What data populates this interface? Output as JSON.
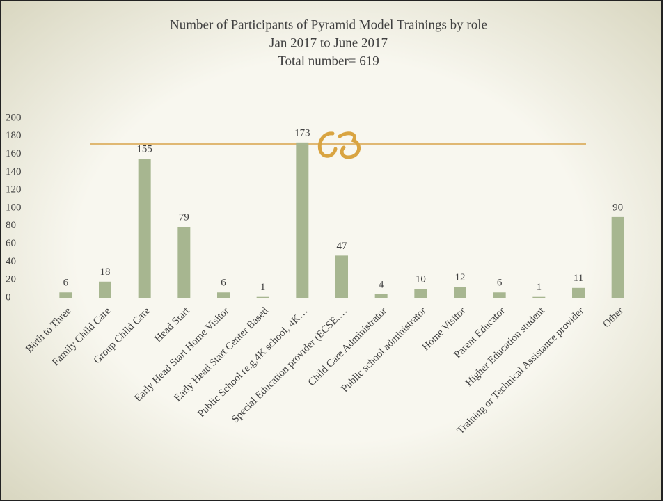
{
  "chart_data": {
    "type": "bar",
    "title": "Number of Participants of Pyramid Model Trainings by role",
    "subtitle": "Jan 2017 to June 2017",
    "annotation": "Total number= 619",
    "categories": [
      "Birth to Three",
      "Family Child Care",
      "Group Child Care",
      "Head Start",
      "Early Head Start Home Visitor",
      "Early Head Start Center Based",
      "Public School (e.g,4K school, 4K…",
      "Special Education provider (ECSE,…",
      "Child Care Administrator",
      "Public school administrator",
      "Home Visitor",
      "Parent Educator",
      "Higher Education student",
      "Training or Technical Assistance provider",
      "Other"
    ],
    "values": [
      6,
      18,
      155,
      79,
      6,
      1,
      173,
      47,
      4,
      10,
      12,
      6,
      1,
      11,
      90
    ],
    "color": "#a7b690",
    "ylim": [
      0,
      200
    ],
    "yticks": [
      0,
      20,
      40,
      60,
      80,
      100,
      120,
      140,
      160,
      180,
      200
    ],
    "grid": false
  }
}
